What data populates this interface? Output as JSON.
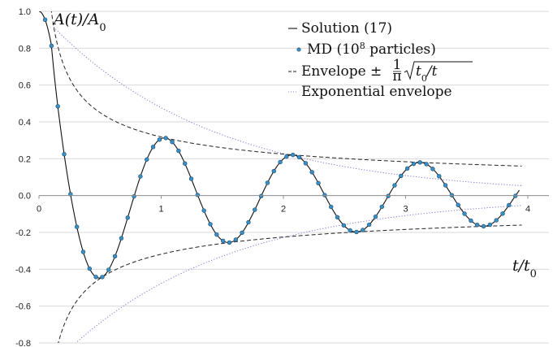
{
  "chart_data": {
    "type": "line",
    "y_axis_title": "A(t)/A0",
    "x_axis_title": "t/t0",
    "xlim": [
      0,
      4
    ],
    "ylim": [
      -0.8,
      1.0
    ],
    "x_ticks": [
      0,
      1,
      2,
      3,
      4
    ],
    "y_ticks": [
      1.0,
      0.8,
      0.6,
      0.4,
      0.2,
      0.0,
      -0.2,
      -0.4,
      -0.6,
      -0.8
    ],
    "x_tick_labels": [
      "0",
      "1",
      "2",
      "3",
      "4"
    ],
    "y_tick_labels": [
      "1.0",
      "0.8",
      "0.6",
      "0.4",
      "0.2",
      "0.0",
      "-0.2",
      "-0.4",
      "-0.6",
      "-0.8"
    ],
    "grid": "horizontal",
    "legend_position": "top-right",
    "legend": [
      {
        "key": "solution",
        "text": "Solution (17)"
      },
      {
        "key": "md",
        "text": "MD (10",
        "sup": "8",
        "text_after": " particles)"
      },
      {
        "key": "envelope",
        "text": "Envelope ±",
        "frac_num": "1",
        "frac_den": "π",
        "sqrt_text": "t0/t"
      },
      {
        "key": "exponential",
        "text": "Exponential envelope"
      }
    ],
    "series": [
      {
        "key": "solution",
        "style": "solid",
        "color": "#111111",
        "model": "damped_cosine",
        "amplitude": 1.0,
        "period": 1.04,
        "damping": 0.0,
        "x_range": [
          0,
          3.93
        ]
      },
      {
        "key": "md",
        "style": "markers",
        "color": "#3a8fc4",
        "model": "damped_cosine",
        "x_start": 0.05,
        "x_step": 0.052,
        "x_end": 3.92
      },
      {
        "key": "envelope",
        "style": "dashed",
        "color": "#222222",
        "model": "inverse_sqrt",
        "coefficient": 0.3183,
        "x_range": [
          0.09,
          3.95
        ]
      },
      {
        "key": "exponential",
        "style": "dotted",
        "color": "#7a7ad8",
        "model": "exponential",
        "decay_rate": 0.74,
        "x_range": [
          0.12,
          3.95
        ]
      }
    ]
  }
}
